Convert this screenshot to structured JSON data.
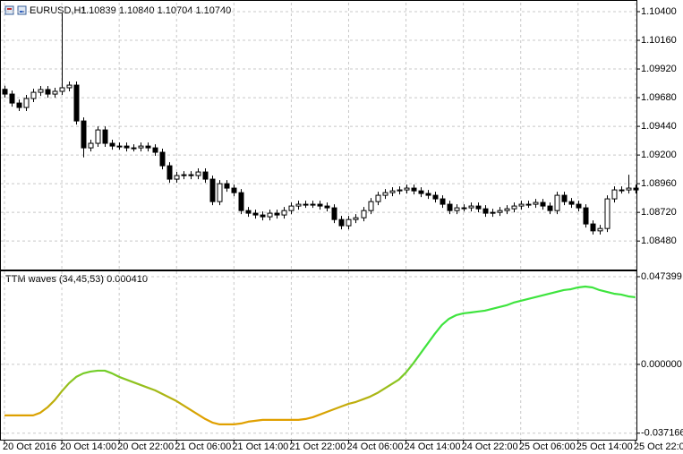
{
  "chart_data": [
    {
      "type": "candlestick",
      "title": "EURUSD,H1",
      "subtitle": "1.10839 1.10840 1.10704 1.10740",
      "up_color": "#ffffff",
      "down_color": "#000000",
      "edge_color": "#000000",
      "grid": true,
      "ylim": [
        1.08249,
        1.10475
      ],
      "yticks": [
        {
          "value": 1.104,
          "label": "1.10400"
        },
        {
          "value": 1.1016,
          "label": "1.10160"
        },
        {
          "value": 1.0992,
          "label": "1.09920"
        },
        {
          "value": 1.0968,
          "label": "1.09680"
        },
        {
          "value": 1.0944,
          "label": "1.09440"
        },
        {
          "value": 1.092,
          "label": "1.09200"
        },
        {
          "value": 1.0896,
          "label": "1.08960"
        },
        {
          "value": 1.0872,
          "label": "1.08720"
        },
        {
          "value": 1.0848,
          "label": "1.08480"
        }
      ],
      "ohlc": [
        [
          1.0975,
          1.0978,
          1.0968,
          1.0971
        ],
        [
          1.0971,
          1.0974,
          1.09605,
          1.09635
        ],
        [
          1.09635,
          1.09665,
          1.09568,
          1.09598
        ],
        [
          1.09598,
          1.09703,
          1.09568,
          1.09673
        ],
        [
          1.09673,
          1.09755,
          1.09643,
          1.09725
        ],
        [
          1.09725,
          1.09778,
          1.09695,
          1.09748
        ],
        [
          1.09748,
          1.09778,
          1.0968,
          1.0971
        ],
        [
          1.0971,
          1.09763,
          1.0968,
          1.09733
        ],
        [
          1.09733,
          1.10385,
          1.09703,
          1.09763
        ],
        [
          1.09763,
          1.09815,
          1.09733,
          1.09785
        ],
        [
          1.09785,
          1.09815,
          1.09455,
          1.09485
        ],
        [
          1.09485,
          1.09515,
          1.0918,
          1.0926
        ],
        [
          1.0926,
          1.09328,
          1.0923,
          1.09298
        ],
        [
          1.09298,
          1.0944,
          1.09268,
          1.0941
        ],
        [
          1.0941,
          1.0944,
          1.09268,
          1.09298
        ],
        [
          1.09298,
          1.09328,
          1.09245,
          1.09275
        ],
        [
          1.09275,
          1.09305,
          1.09245,
          1.09275
        ],
        [
          1.09275,
          1.09305,
          1.0923,
          1.0926
        ],
        [
          1.0926,
          1.0929,
          1.0923,
          1.0926
        ],
        [
          1.0926,
          1.09305,
          1.0923,
          1.09275
        ],
        [
          1.09275,
          1.09305,
          1.0923,
          1.0926
        ],
        [
          1.0926,
          1.0929,
          1.09193,
          1.09223
        ],
        [
          1.09223,
          1.09253,
          1.0908,
          1.0911
        ],
        [
          1.0911,
          1.0914,
          1.08968,
          1.08998
        ],
        [
          1.08998,
          1.09058,
          1.08968,
          1.09028
        ],
        [
          1.09028,
          1.09065,
          1.08998,
          1.09035
        ],
        [
          1.09035,
          1.09065,
          1.08998,
          1.09028
        ],
        [
          1.09028,
          1.09088,
          1.08998,
          1.09058
        ],
        [
          1.09058,
          1.09088,
          1.08968,
          1.08998
        ],
        [
          1.08998,
          1.09028,
          1.0878,
          1.0881
        ],
        [
          1.0881,
          1.0899,
          1.0878,
          1.0896
        ],
        [
          1.0896,
          1.0899,
          1.08893,
          1.08923
        ],
        [
          1.08923,
          1.08953,
          1.08855,
          1.08885
        ],
        [
          1.08885,
          1.08915,
          1.08705,
          1.08735
        ],
        [
          1.08735,
          1.08765,
          1.08683,
          1.08713
        ],
        [
          1.08713,
          1.08743,
          1.08668,
          1.08698
        ],
        [
          1.08698,
          1.08728,
          1.08653,
          1.08683
        ],
        [
          1.08683,
          1.08743,
          1.08653,
          1.08713
        ],
        [
          1.08713,
          1.08743,
          1.08668,
          1.08698
        ],
        [
          1.08698,
          1.08765,
          1.08668,
          1.08735
        ],
        [
          1.08735,
          1.08803,
          1.08705,
          1.08773
        ],
        [
          1.08773,
          1.08818,
          1.08743,
          1.08788
        ],
        [
          1.08788,
          1.08818,
          1.08758,
          1.08788
        ],
        [
          1.08788,
          1.08818,
          1.08758,
          1.08788
        ],
        [
          1.08788,
          1.08818,
          1.08743,
          1.08773
        ],
        [
          1.08773,
          1.08803,
          1.08728,
          1.08758
        ],
        [
          1.08758,
          1.08788,
          1.0863,
          1.0866
        ],
        [
          1.0866,
          1.0869,
          1.08578,
          1.08608
        ],
        [
          1.08608,
          1.0869,
          1.08578,
          1.0866
        ],
        [
          1.0866,
          1.08705,
          1.0863,
          1.08675
        ],
        [
          1.08675,
          1.08765,
          1.08645,
          1.08735
        ],
        [
          1.08735,
          1.0884,
          1.08705,
          1.0881
        ],
        [
          1.0881,
          1.08893,
          1.0878,
          1.08863
        ],
        [
          1.08863,
          1.08915,
          1.08833,
          1.08885
        ],
        [
          1.08885,
          1.0893,
          1.08855,
          1.089
        ],
        [
          1.089,
          1.08938,
          1.0887,
          1.08908
        ],
        [
          1.08908,
          1.08953,
          1.08878,
          1.08923
        ],
        [
          1.08923,
          1.08953,
          1.0887,
          1.089
        ],
        [
          1.089,
          1.0893,
          1.08848,
          1.08878
        ],
        [
          1.08878,
          1.08908,
          1.08833,
          1.08863
        ],
        [
          1.08863,
          1.08893,
          1.08803,
          1.08833
        ],
        [
          1.08833,
          1.08863,
          1.08758,
          1.08788
        ],
        [
          1.08788,
          1.08818,
          1.08705,
          1.08735
        ],
        [
          1.08735,
          1.08788,
          1.08705,
          1.08758
        ],
        [
          1.08758,
          1.08788,
          1.08728,
          1.08758
        ],
        [
          1.08758,
          1.08803,
          1.08728,
          1.08773
        ],
        [
          1.08773,
          1.08803,
          1.0872,
          1.0875
        ],
        [
          1.0875,
          1.0878,
          1.08683,
          1.08713
        ],
        [
          1.08713,
          1.0875,
          1.08683,
          1.0872
        ],
        [
          1.0872,
          1.08765,
          1.0869,
          1.08735
        ],
        [
          1.08735,
          1.0878,
          1.08705,
          1.0875
        ],
        [
          1.0875,
          1.08803,
          1.0872,
          1.08773
        ],
        [
          1.08773,
          1.08818,
          1.08743,
          1.08788
        ],
        [
          1.08788,
          1.08818,
          1.08758,
          1.08788
        ],
        [
          1.08788,
          1.08833,
          1.08758,
          1.08803
        ],
        [
          1.08803,
          1.08833,
          1.08743,
          1.08773
        ],
        [
          1.08773,
          1.08803,
          1.08705,
          1.08735
        ],
        [
          1.08735,
          1.08893,
          1.08705,
          1.08863
        ],
        [
          1.08863,
          1.08893,
          1.0878,
          1.0881
        ],
        [
          1.0881,
          1.0884,
          1.08758,
          1.08788
        ],
        [
          1.08788,
          1.08818,
          1.08728,
          1.08758
        ],
        [
          1.08758,
          1.08788,
          1.08593,
          1.08623
        ],
        [
          1.08623,
          1.08653,
          1.08535,
          1.08565
        ],
        [
          1.08565,
          1.08615,
          1.08535,
          1.08585
        ],
        [
          1.08585,
          1.08863,
          1.08555,
          1.08833
        ],
        [
          1.08833,
          1.08938,
          1.08803,
          1.08908
        ],
        [
          1.08908,
          1.08938,
          1.08878,
          1.08908
        ],
        [
          1.08908,
          1.09035,
          1.08878,
          1.08923
        ],
        [
          1.08923,
          1.08953,
          1.08878,
          1.08908
        ]
      ]
    },
    {
      "type": "line",
      "title": "TTM waves (34,45,53) 0.000410",
      "colors": [
        "#e0a000",
        "#3ee43e"
      ],
      "grid": true,
      "ylim": [
        -0.0402,
        0.0503
      ],
      "yticks": [
        {
          "value": 0.047399,
          "label": "0.047399"
        },
        {
          "value": 0,
          "label": "0.000000"
        },
        {
          "value": -0.037166,
          "label": "-0.037166"
        }
      ],
      "categories": [
        "20 Oct 2016",
        null,
        null,
        null,
        null,
        null,
        null,
        null,
        "20 Oct 14:00",
        null,
        null,
        null,
        null,
        null,
        null,
        null,
        "20 Oct 22:00",
        null,
        null,
        null,
        null,
        null,
        null,
        null,
        "21 Oct 06:00",
        null,
        null,
        null,
        null,
        null,
        null,
        null,
        "21 Oct 14:00",
        null,
        null,
        null,
        null,
        null,
        null,
        null,
        "21 Oct 22:00",
        null,
        null,
        null,
        null,
        null,
        null,
        null,
        "24 Oct 06:00",
        null,
        null,
        null,
        null,
        null,
        null,
        null,
        "24 Oct 14:00",
        null,
        null,
        null,
        null,
        null,
        null,
        null,
        "24 Oct 22:00",
        null,
        null,
        null,
        null,
        null,
        null,
        null,
        "25 Oct 06:00",
        null,
        null,
        null,
        null,
        null,
        null,
        null,
        "25 Oct 14:00",
        null,
        null,
        null,
        null,
        null,
        null,
        null,
        "25 Oct 22:00"
      ],
      "values": [
        -0.02757,
        -0.02757,
        -0.02757,
        -0.02757,
        -0.02757,
        -0.02612,
        -0.02322,
        -0.01935,
        -0.01451,
        -0.01016,
        -0.00677,
        -0.00484,
        -0.00387,
        -0.00339,
        -0.00339,
        -0.00484,
        -0.00677,
        -0.00822,
        -0.00967,
        -0.01112,
        -0.01257,
        -0.01402,
        -0.01596,
        -0.01789,
        -0.01983,
        -0.02225,
        -0.02467,
        -0.02709,
        -0.0295,
        -0.03144,
        -0.03241,
        -0.03241,
        -0.03241,
        -0.03192,
        -0.03095,
        -0.03047,
        -0.02999,
        -0.02999,
        -0.02999,
        -0.02999,
        -0.02999,
        -0.02999,
        -0.0295,
        -0.02854,
        -0.02709,
        -0.02563,
        -0.02418,
        -0.02273,
        -0.02128,
        -0.02031,
        -0.01886,
        -0.01741,
        -0.01548,
        -0.01306,
        -0.01064,
        -0.00822,
        -0.00435,
        0.00048,
        0.0058,
        0.01112,
        0.01644,
        0.02128,
        0.02467,
        0.0266,
        0.02757,
        0.02805,
        0.02854,
        0.02902,
        0.02999,
        0.03095,
        0.03192,
        0.03337,
        0.03434,
        0.03531,
        0.03628,
        0.03724,
        0.03821,
        0.03918,
        0.04015,
        0.04063,
        0.0416,
        0.04208,
        0.0416,
        0.04015,
        0.03918,
        0.03821,
        0.03773,
        0.03676,
        0.03628
      ]
    }
  ]
}
